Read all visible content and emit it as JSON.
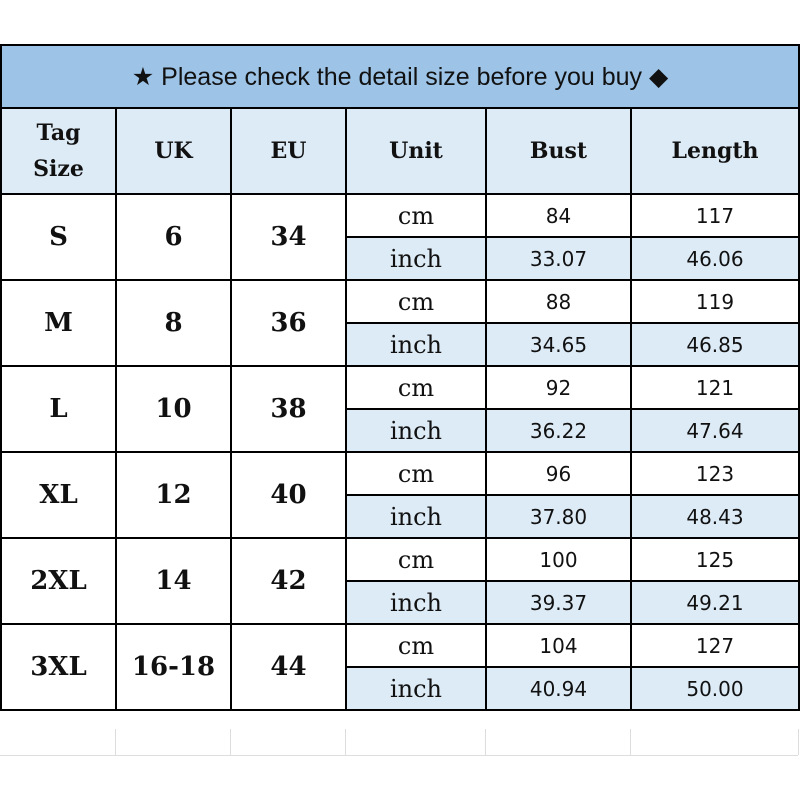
{
  "title": {
    "star": "★",
    "text": "Please check the detail size before you buy",
    "diamond": "◆"
  },
  "headers": [
    "Tag Size",
    "UK",
    "EU",
    "Unit",
    "Bust",
    "Length"
  ],
  "headers_lines": {
    "tag_line1": "Tag",
    "tag_line2": "Size"
  },
  "units": {
    "cm": "cm",
    "inch": "inch"
  },
  "rows": [
    {
      "tag": "S",
      "uk": "6",
      "eu": "34",
      "cm": {
        "bust": "84",
        "length": "117"
      },
      "inch": {
        "bust": "33.07",
        "length": "46.06"
      }
    },
    {
      "tag": "M",
      "uk": "8",
      "eu": "36",
      "cm": {
        "bust": "88",
        "length": "119"
      },
      "inch": {
        "bust": "34.65",
        "length": "46.85"
      }
    },
    {
      "tag": "L",
      "uk": "10",
      "eu": "38",
      "cm": {
        "bust": "92",
        "length": "121"
      },
      "inch": {
        "bust": "36.22",
        "length": "47.64"
      }
    },
    {
      "tag": "XL",
      "uk": "12",
      "eu": "40",
      "cm": {
        "bust": "96",
        "length": "123"
      },
      "inch": {
        "bust": "37.80",
        "length": "48.43"
      }
    },
    {
      "tag": "2XL",
      "uk": "14",
      "eu": "42",
      "cm": {
        "bust": "100",
        "length": "125"
      },
      "inch": {
        "bust": "39.37",
        "length": "49.21"
      }
    },
    {
      "tag": "3XL",
      "uk": "16-18",
      "eu": "44",
      "cm": {
        "bust": "104",
        "length": "127"
      },
      "inch": {
        "bust": "40.94",
        "length": "50.00"
      }
    }
  ],
  "colors": {
    "title_bg": "#9dc3e6",
    "header_bg": "#ddebf7",
    "inch_row_bg": "#ddebf7"
  }
}
